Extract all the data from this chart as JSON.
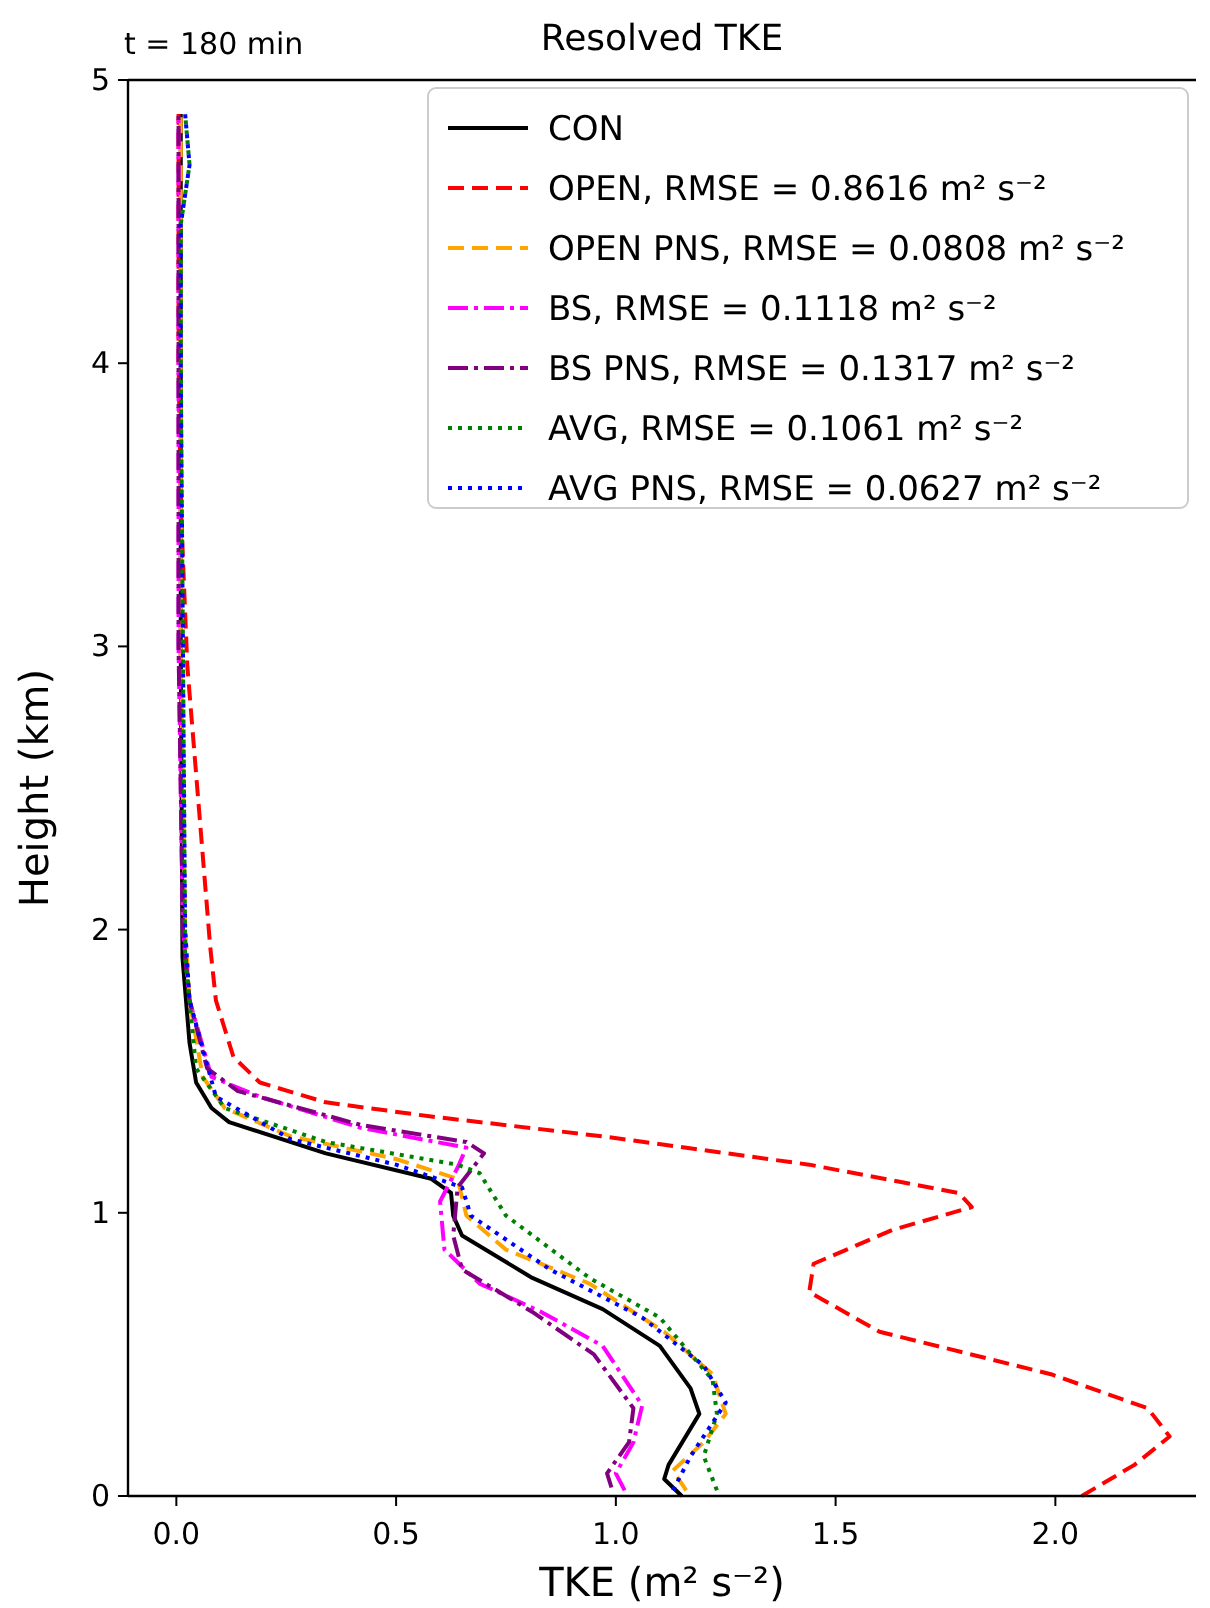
{
  "chart_data": {
    "type": "line",
    "title": "Resolved TKE",
    "xlabel": "TKE (m² s⁻²)",
    "ylabel": "Height (km)",
    "annotations": [
      "t = 180 min"
    ],
    "xlim": [
      -0.11,
      2.32
    ],
    "xticks": [
      {
        "value": 0,
        "label": "0.0"
      },
      0.5,
      {
        "value": 1,
        "label": "1.0"
      },
      1.5,
      {
        "value": 2,
        "label": "2.0"
      }
    ],
    "ylim": [
      0,
      5
    ],
    "yticks": [
      0,
      1,
      2,
      3,
      4,
      5
    ],
    "grid": false,
    "legend": "top right",
    "series": [
      {
        "name": "CON",
        "color": "#000000",
        "line_style": "solid",
        "x": [
          1.15,
          1.11,
          1.12,
          1.19,
          1.17,
          1.1,
          0.97,
          0.81,
          0.65,
          0.63,
          0.625,
          0.58,
          0.34,
          0.12,
          0.08,
          0.045,
          0.03,
          0.014,
          0.01,
          0.01
        ],
        "values": [
          0.0,
          0.06,
          0.11,
          0.29,
          0.38,
          0.53,
          0.66,
          0.77,
          0.92,
          0.99,
          1.07,
          1.12,
          1.21,
          1.32,
          1.37,
          1.46,
          1.6,
          1.9,
          3.0,
          4.88
        ]
      },
      {
        "name": "OPEN, RMSE = 0.8616 m² s⁻²",
        "color": "#ff0000",
        "line_style": "dashed",
        "x": [
          2.06,
          2.18,
          2.26,
          2.21,
          1.99,
          1.6,
          1.44,
          1.45,
          1.63,
          1.81,
          1.78,
          1.44,
          0.97,
          0.58,
          0.34,
          0.19,
          0.13,
          0.09,
          0.077,
          0.025,
          0.01,
          0.005,
          0.005
        ],
        "values": [
          0.0,
          0.11,
          0.21,
          0.31,
          0.43,
          0.58,
          0.72,
          0.82,
          0.94,
          1.02,
          1.07,
          1.17,
          1.27,
          1.34,
          1.39,
          1.46,
          1.55,
          1.75,
          1.94,
          2.93,
          3.5,
          4.0,
          4.88
        ]
      },
      {
        "name": "OPEN PNS, RMSE = 0.0808 m² s⁻²",
        "color": "#ffa500",
        "line_style": "dashed",
        "x": [
          1.16,
          1.13,
          1.2,
          1.25,
          1.22,
          1.11,
          0.94,
          0.75,
          0.66,
          0.64,
          0.5,
          0.26,
          0.11,
          0.06,
          0.03,
          0.02,
          0.01,
          0.01
        ],
        "values": [
          0.02,
          0.09,
          0.19,
          0.29,
          0.43,
          0.58,
          0.75,
          0.87,
          0.99,
          1.12,
          1.19,
          1.27,
          1.37,
          1.48,
          1.75,
          2.0,
          3.0,
          4.88
        ]
      },
      {
        "name": "BS, RMSE = 0.1118 m² s⁻²",
        "color": "#ff00ff",
        "line_style": "dashdot",
        "x": [
          1.02,
          1.0,
          1.04,
          1.06,
          0.97,
          0.83,
          0.69,
          0.61,
          0.6,
          0.64,
          0.66,
          0.42,
          0.19,
          0.08,
          0.03,
          0.015,
          0.005,
          0.005
        ],
        "values": [
          0.02,
          0.08,
          0.19,
          0.32,
          0.53,
          0.65,
          0.75,
          0.87,
          1.04,
          1.16,
          1.23,
          1.3,
          1.41,
          1.48,
          1.75,
          2.0,
          3.0,
          4.88
        ]
      },
      {
        "name": "BS PNS, RMSE = 0.1317 m² s⁻²",
        "color": "#800080",
        "line_style": "dashdot",
        "x": [
          0.99,
          0.98,
          1.03,
          1.04,
          0.95,
          0.81,
          0.65,
          0.63,
          0.64,
          0.7,
          0.66,
          0.42,
          0.14,
          0.07,
          0.03,
          0.015,
          0.005,
          0.005
        ],
        "values": [
          0.03,
          0.08,
          0.19,
          0.31,
          0.5,
          0.65,
          0.8,
          0.92,
          1.09,
          1.21,
          1.25,
          1.31,
          1.43,
          1.51,
          1.75,
          2.0,
          3.0,
          4.88
        ]
      },
      {
        "name": "AVG, RMSE = 0.1061 m² s⁻²",
        "color": "#008000",
        "line_style": "dotted",
        "x": [
          1.23,
          1.2,
          1.23,
          1.22,
          1.1,
          0.94,
          0.75,
          0.69,
          0.64,
          0.34,
          0.11,
          0.045,
          0.02,
          0.015,
          0.01,
          0.01,
          0.03,
          0.02
        ],
        "values": [
          0.02,
          0.14,
          0.29,
          0.41,
          0.63,
          0.77,
          0.99,
          1.14,
          1.17,
          1.25,
          1.37,
          1.51,
          1.9,
          3.0,
          4.0,
          4.49,
          4.7,
          4.88
        ]
      },
      {
        "name": "AVG PNS, RMSE = 0.0627 m² s⁻²",
        "color": "#0000ff",
        "line_style": "dotted",
        "x": [
          1.13,
          1.17,
          1.25,
          1.2,
          1.06,
          0.85,
          0.67,
          0.65,
          0.5,
          0.26,
          0.09,
          0.03,
          0.02,
          0.015,
          0.01,
          0.01,
          0.03,
          0.02
        ],
        "values": [
          0.02,
          0.14,
          0.33,
          0.46,
          0.63,
          0.8,
          0.99,
          1.09,
          1.17,
          1.26,
          1.41,
          1.75,
          2.0,
          3.0,
          4.0,
          4.49,
          4.7,
          4.88
        ]
      }
    ]
  }
}
